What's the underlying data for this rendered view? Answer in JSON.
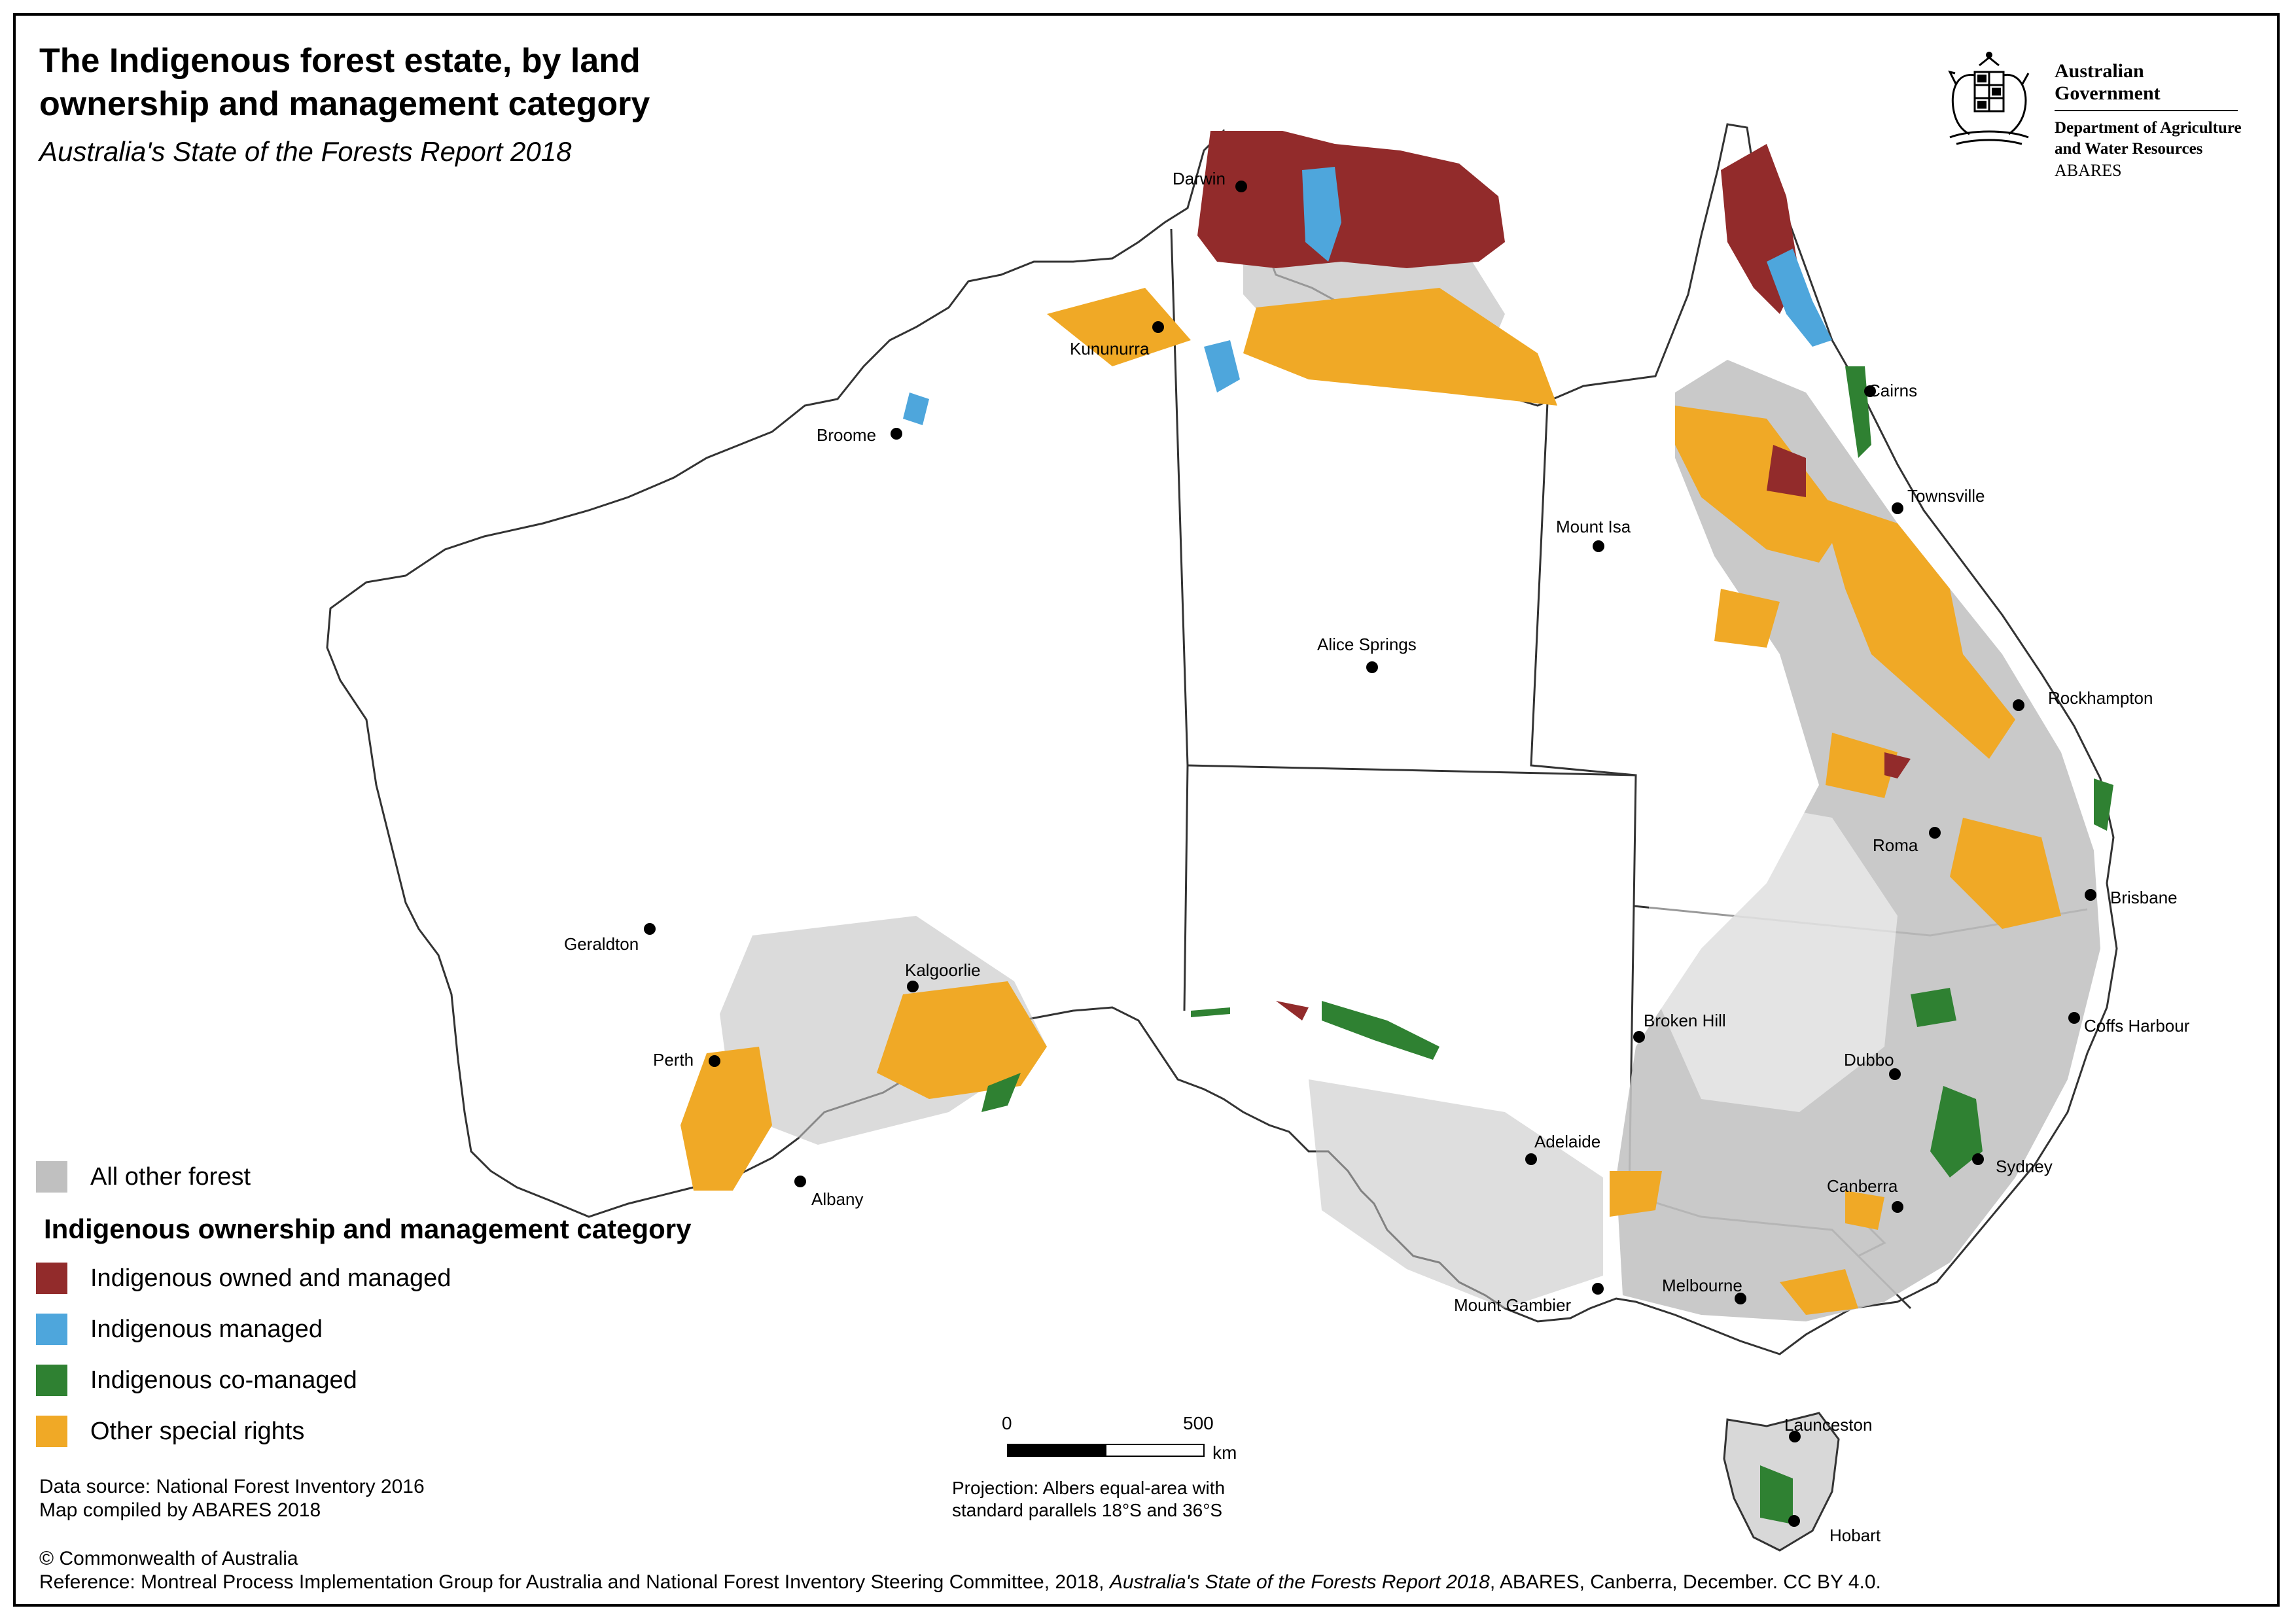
{
  "title": "The Indigenous forest estate, by land ownership and management category",
  "subtitle": "Australia's State of the Forests Report 2018",
  "gov_logo": {
    "line1": "Australian Government",
    "line2a": "Department of Agriculture",
    "line2b": "and Water Resources",
    "line3": "ABARES",
    "icon": "coat-of-arms"
  },
  "legend": {
    "other": {
      "label": "All other forest",
      "color": "#c0c0c0"
    },
    "heading": "Indigenous ownership and management category",
    "items": [
      {
        "label": "Indigenous owned and managed",
        "color": "#922b2b"
      },
      {
        "label": "Indigenous managed",
        "color": "#4ea6dc"
      },
      {
        "label": "Indigenous co-managed",
        "color": "#2f8132"
      },
      {
        "label": "Other special rights",
        "color": "#f0a926"
      }
    ]
  },
  "cities": {
    "darwin": "Darwin",
    "kununurra": "Kununurra",
    "broome": "Broome",
    "cairns": "Cairns",
    "townsville": "Townsville",
    "mount_isa": "Mount Isa",
    "alice_springs": "Alice Springs",
    "rockhampton": "Rockhampton",
    "roma": "Roma",
    "brisbane": "Brisbane",
    "geraldton": "Geraldton",
    "kalgoorlie": "Kalgoorlie",
    "perth": "Perth",
    "albany": "Albany",
    "broken_hill": "Broken Hill",
    "coffs_harbour": "Coffs Harbour",
    "dubbo": "Dubbo",
    "sydney": "Sydney",
    "adelaide": "Adelaide",
    "canberra": "Canberra",
    "mount_gambier": "Mount Gambier",
    "melbourne": "Melbourne",
    "launceston": "Launceston",
    "hobart": "Hobart"
  },
  "scale_bar": {
    "start": "0",
    "end": "500",
    "unit": "km"
  },
  "projection": {
    "line1": "Projection: Albers equal-area with",
    "line2": "standard parallels 18°S and 36°S"
  },
  "data_source": {
    "line1": "Data source: National Forest Inventory 2016",
    "line2": "Map compiled by ABARES 2018"
  },
  "copyright": "© Commonwealth of Australia",
  "reference": {
    "prefix": "Reference: Montreal Process Implementation Group for Australia and National Forest Inventory Steering Committee, 2018, ",
    "italic": "Australia's State of the Forests Report 2018",
    "suffix": ", ABARES, Canberra, December. CC BY 4.0."
  }
}
